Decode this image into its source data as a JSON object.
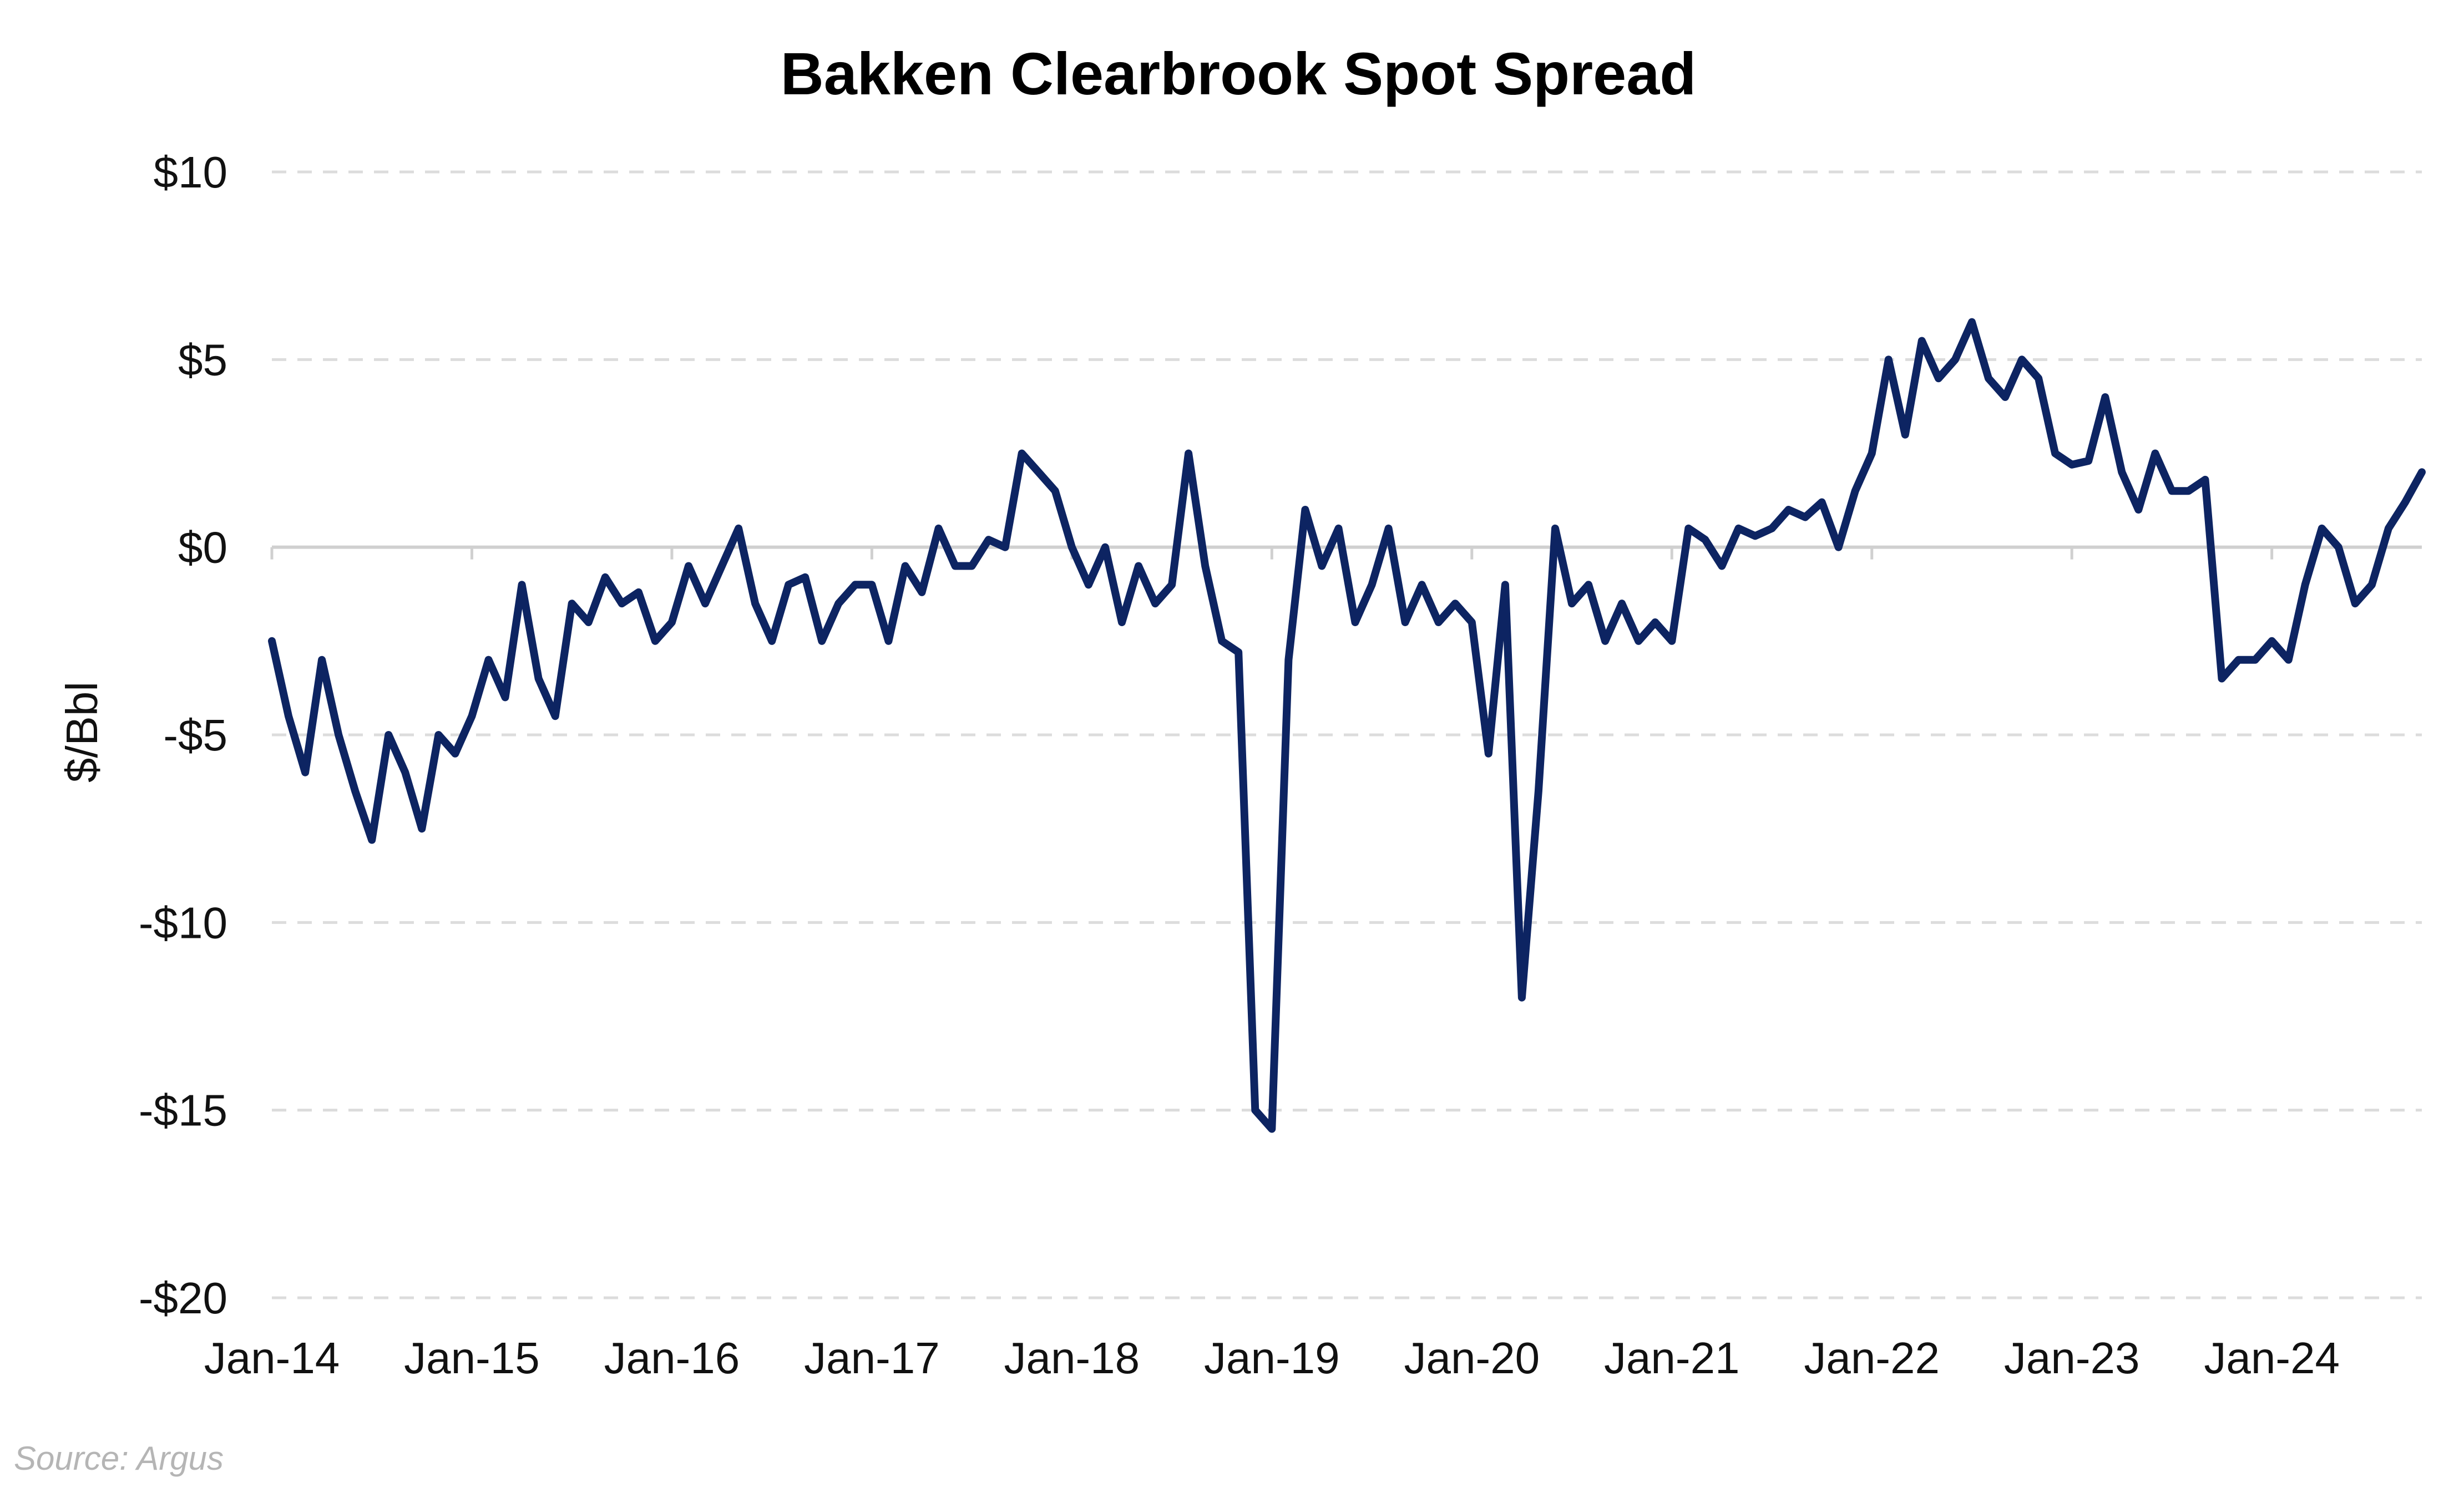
{
  "chart_data": {
    "type": "line",
    "title": "Bakken Clearbrook Spot Spread",
    "xlabel": "",
    "ylabel": "$/Bbl",
    "source": "Source: Argus",
    "x_tick_labels": [
      "Jan-14",
      "Jan-15",
      "Jan-16",
      "Jan-17",
      "Jan-18",
      "Jan-19",
      "Jan-20",
      "Jan-21",
      "Jan-22",
      "Jan-23",
      "Jan-24"
    ],
    "y_tick_values": [
      10,
      5,
      0,
      -5,
      -10,
      -15,
      -20
    ],
    "y_tick_labels": [
      "$10",
      "$5",
      "$0",
      "-$5",
      "-$10",
      "-$15",
      "-$20"
    ],
    "xlim": [
      "2014-01",
      "2024-10"
    ],
    "ylim": [
      -20,
      10
    ],
    "grid": "horizontal dashed",
    "line_color": "#0d2462",
    "series": [
      {
        "x": [
          "2014-01",
          "2014-02",
          "2014-03",
          "2014-04",
          "2014-05",
          "2014-06",
          "2014-07",
          "2014-08",
          "2014-09",
          "2014-10",
          "2014-11",
          "2014-12",
          "2015-01",
          "2015-02",
          "2015-03",
          "2015-04",
          "2015-05",
          "2015-06",
          "2015-07",
          "2015-08",
          "2015-09",
          "2015-10",
          "2015-11",
          "2015-12",
          "2016-01",
          "2016-02",
          "2016-03",
          "2016-04",
          "2016-05",
          "2016-06",
          "2016-07",
          "2016-08",
          "2016-09",
          "2016-10",
          "2016-11",
          "2016-12",
          "2017-01",
          "2017-02",
          "2017-03",
          "2017-04",
          "2017-05",
          "2017-06",
          "2017-07",
          "2017-08",
          "2017-09",
          "2017-10",
          "2017-11",
          "2017-12",
          "2018-01",
          "2018-02",
          "2018-03",
          "2018-04",
          "2018-05",
          "2018-06",
          "2018-07",
          "2018-08",
          "2018-09",
          "2018-10",
          "2018-11",
          "2018-12",
          "2019-01",
          "2019-02",
          "2019-03",
          "2019-04",
          "2019-05",
          "2019-06",
          "2019-07",
          "2019-08",
          "2019-09",
          "2019-10",
          "2019-11",
          "2019-12",
          "2020-01",
          "2020-02",
          "2020-03",
          "2020-04",
          "2020-05",
          "2020-06",
          "2020-07",
          "2020-08",
          "2020-09",
          "2020-10",
          "2020-11",
          "2020-12",
          "2021-01",
          "2021-02",
          "2021-03",
          "2021-04",
          "2021-05",
          "2021-06",
          "2021-07",
          "2021-08",
          "2021-09",
          "2021-10",
          "2021-11",
          "2021-12",
          "2022-01",
          "2022-02",
          "2022-03",
          "2022-04",
          "2022-05",
          "2022-06",
          "2022-07",
          "2022-08",
          "2022-09",
          "2022-10",
          "2022-11",
          "2022-12",
          "2023-01",
          "2023-02",
          "2023-03",
          "2023-04",
          "2023-05",
          "2023-06",
          "2023-07",
          "2023-08",
          "2023-09",
          "2023-10",
          "2023-11",
          "2023-12",
          "2024-01",
          "2024-02",
          "2024-03",
          "2024-04",
          "2024-05",
          "2024-06",
          "2024-07",
          "2024-08",
          "2024-09",
          "2024-10"
        ],
        "y": [
          -2.5,
          -4.5,
          -6.0,
          -3.0,
          -5.0,
          -6.5,
          -7.8,
          -5.0,
          -6.0,
          -7.5,
          -5.0,
          -5.5,
          -4.5,
          -3.0,
          -4.0,
          -1.0,
          -3.5,
          -4.5,
          -1.5,
          -2.0,
          -0.8,
          -1.5,
          -1.2,
          -2.5,
          -2.0,
          -0.5,
          -1.5,
          -0.5,
          0.5,
          -1.5,
          -2.5,
          -1.0,
          -0.8,
          -2.5,
          -1.5,
          -1.0,
          -1.0,
          -2.5,
          -0.5,
          -1.2,
          0.5,
          -0.5,
          -0.5,
          0.2,
          0.0,
          2.5,
          2.0,
          1.5,
          0.0,
          -1.0,
          0.0,
          -2.0,
          -0.5,
          -1.5,
          -1.0,
          2.5,
          -0.5,
          -2.5,
          -2.8,
          -15.0,
          -15.5,
          -3.0,
          1.0,
          -0.5,
          0.5,
          -2.0,
          -1.0,
          0.5,
          -2.0,
          -1.0,
          -2.0,
          -1.5,
          -2.0,
          -5.5,
          -1.0,
          -12.0,
          -6.5,
          0.5,
          -1.5,
          -1.0,
          -2.5,
          -1.5,
          -2.5,
          -2.0,
          -2.5,
          0.5,
          0.2,
          -0.5,
          0.5,
          0.3,
          0.5,
          1.0,
          0.8,
          1.2,
          0.0,
          1.5,
          2.5,
          5.0,
          3.0,
          5.5,
          4.5,
          5.0,
          6.0,
          4.5,
          4.0,
          5.0,
          4.5,
          2.5,
          2.2,
          2.3,
          4.0,
          2.0,
          1.0,
          2.5,
          1.5,
          1.5,
          1.8,
          -3.5,
          -3.0,
          -3.0,
          -2.5,
          -3.0,
          -1.0,
          0.5,
          0.0,
          -1.5,
          -1.0,
          0.5,
          1.2,
          2.0
        ]
      }
    ]
  }
}
